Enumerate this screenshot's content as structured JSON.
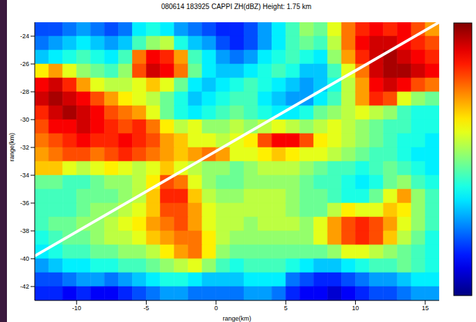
{
  "chart_data": {
    "type": "heatmap",
    "title": "080614 183925 CAPPI ZH(dBZ) Height: 1.75 km",
    "x_label": "range(km)",
    "y_label": "range(km)",
    "xlim": [
      -13,
      16
    ],
    "ylim": [
      -43,
      -23
    ],
    "xticks": [
      -10,
      -5,
      0,
      5,
      10,
      15
    ],
    "yticks": [
      -42,
      -40,
      -38,
      -36,
      -34,
      -32,
      -30,
      -28,
      -26,
      -24
    ],
    "x_edges": [
      -13,
      -12,
      -11,
      -10,
      -9,
      -8,
      -7,
      -6,
      -5,
      -4,
      -3,
      -2,
      -1,
      0,
      1,
      2,
      3,
      4,
      5,
      6,
      7,
      8,
      9,
      10,
      11,
      12,
      13,
      14,
      15,
      16
    ],
    "y_edges": [
      -23,
      -24,
      -25,
      -26,
      -27,
      -28,
      -29,
      -30,
      -31,
      -32,
      -33,
      -34,
      -35,
      -36,
      -37,
      -38,
      -39,
      -40,
      -41,
      -42,
      -43
    ],
    "cells": [
      [
        10,
        10,
        12,
        14,
        12,
        10,
        12,
        18,
        20,
        18,
        14,
        12,
        10,
        8,
        8,
        10,
        14,
        18,
        22,
        26,
        24,
        30,
        38,
        42,
        44,
        42,
        44,
        40,
        36
      ],
      [
        12,
        14,
        16,
        18,
        16,
        14,
        16,
        22,
        26,
        28,
        20,
        16,
        14,
        10,
        8,
        10,
        14,
        18,
        22,
        24,
        22,
        28,
        38,
        44,
        46,
        46,
        44,
        42,
        40
      ],
      [
        16,
        18,
        20,
        22,
        20,
        18,
        22,
        38,
        44,
        42,
        36,
        22,
        18,
        14,
        12,
        14,
        18,
        20,
        22,
        20,
        18,
        26,
        36,
        42,
        46,
        48,
        46,
        44,
        42
      ],
      [
        32,
        36,
        30,
        26,
        24,
        22,
        26,
        40,
        46,
        44,
        38,
        24,
        18,
        16,
        16,
        18,
        20,
        22,
        20,
        16,
        16,
        22,
        30,
        38,
        46,
        48,
        48,
        46,
        44
      ],
      [
        44,
        46,
        42,
        36,
        30,
        28,
        28,
        30,
        34,
        30,
        24,
        18,
        16,
        18,
        20,
        22,
        20,
        18,
        16,
        14,
        16,
        20,
        28,
        36,
        44,
        46,
        44,
        40,
        38
      ],
      [
        46,
        48,
        46,
        44,
        40,
        36,
        32,
        30,
        28,
        24,
        20,
        16,
        18,
        20,
        22,
        22,
        18,
        16,
        14,
        14,
        18,
        22,
        28,
        36,
        42,
        40,
        30,
        26,
        24
      ],
      [
        42,
        46,
        48,
        46,
        44,
        40,
        38,
        36,
        30,
        24,
        20,
        18,
        20,
        22,
        24,
        22,
        20,
        18,
        18,
        20,
        24,
        26,
        28,
        30,
        28,
        26,
        22,
        20,
        20
      ],
      [
        40,
        44,
        44,
        46,
        44,
        42,
        40,
        42,
        38,
        32,
        28,
        30,
        26,
        26,
        28,
        26,
        28,
        30,
        28,
        26,
        28,
        30,
        28,
        26,
        24,
        22,
        22,
        20,
        20
      ],
      [
        38,
        40,
        42,
        44,
        42,
        42,
        44,
        42,
        40,
        36,
        34,
        30,
        30,
        28,
        30,
        32,
        40,
        44,
        44,
        40,
        32,
        30,
        28,
        26,
        24,
        22,
        20,
        20,
        18
      ],
      [
        36,
        38,
        40,
        40,
        38,
        40,
        42,
        40,
        38,
        36,
        34,
        36,
        38,
        36,
        30,
        30,
        32,
        34,
        32,
        30,
        30,
        28,
        26,
        24,
        22,
        22,
        20,
        18,
        18
      ],
      [
        34,
        34,
        30,
        28,
        30,
        32,
        30,
        28,
        30,
        34,
        30,
        28,
        26,
        26,
        24,
        26,
        28,
        28,
        28,
        26,
        24,
        22,
        22,
        20,
        22,
        24,
        22,
        20,
        18
      ],
      [
        24,
        24,
        22,
        22,
        24,
        26,
        26,
        28,
        32,
        40,
        38,
        30,
        26,
        24,
        24,
        26,
        26,
        26,
        26,
        24,
        22,
        22,
        20,
        18,
        20,
        24,
        26,
        22,
        20
      ],
      [
        22,
        22,
        22,
        24,
        24,
        24,
        26,
        28,
        34,
        42,
        42,
        34,
        28,
        26,
        26,
        28,
        28,
        28,
        26,
        24,
        24,
        22,
        20,
        20,
        24,
        30,
        36,
        26,
        22
      ],
      [
        22,
        22,
        22,
        24,
        26,
        26,
        28,
        30,
        34,
        40,
        40,
        36,
        30,
        28,
        28,
        28,
        28,
        28,
        26,
        24,
        24,
        28,
        32,
        30,
        30,
        34,
        32,
        26,
        22
      ],
      [
        22,
        24,
        24,
        26,
        26,
        28,
        30,
        32,
        36,
        38,
        40,
        36,
        30,
        28,
        28,
        26,
        28,
        28,
        28,
        26,
        30,
        36,
        40,
        42,
        40,
        36,
        30,
        26,
        22
      ],
      [
        20,
        22,
        24,
        24,
        26,
        28,
        28,
        30,
        34,
        36,
        38,
        38,
        32,
        28,
        26,
        26,
        26,
        26,
        26,
        26,
        30,
        36,
        40,
        42,
        40,
        34,
        28,
        24,
        20
      ],
      [
        18,
        20,
        22,
        22,
        24,
        24,
        26,
        26,
        28,
        32,
        36,
        38,
        32,
        26,
        24,
        24,
        24,
        24,
        24,
        24,
        24,
        26,
        30,
        30,
        28,
        26,
        24,
        22,
        20
      ],
      [
        14,
        16,
        18,
        18,
        20,
        20,
        22,
        22,
        24,
        26,
        28,
        30,
        26,
        22,
        20,
        22,
        22,
        22,
        20,
        18,
        16,
        16,
        18,
        20,
        22,
        22,
        24,
        22,
        20
      ],
      [
        10,
        10,
        12,
        14,
        14,
        12,
        14,
        16,
        18,
        20,
        20,
        18,
        16,
        16,
        16,
        18,
        18,
        18,
        12,
        10,
        8,
        8,
        10,
        12,
        14,
        14,
        16,
        18,
        18
      ],
      [
        8,
        8,
        6,
        8,
        6,
        6,
        8,
        10,
        12,
        14,
        14,
        12,
        12,
        12,
        12,
        14,
        14,
        12,
        8,
        6,
        6,
        4,
        6,
        8,
        10,
        10,
        12,
        14,
        14
      ]
    ],
    "colorbar_range": [
      0,
      50
    ],
    "annotation_line": {
      "x": [
        -13,
        16
      ],
      "y": [
        -39.8,
        -23
      ],
      "color": "#ffffff"
    }
  }
}
